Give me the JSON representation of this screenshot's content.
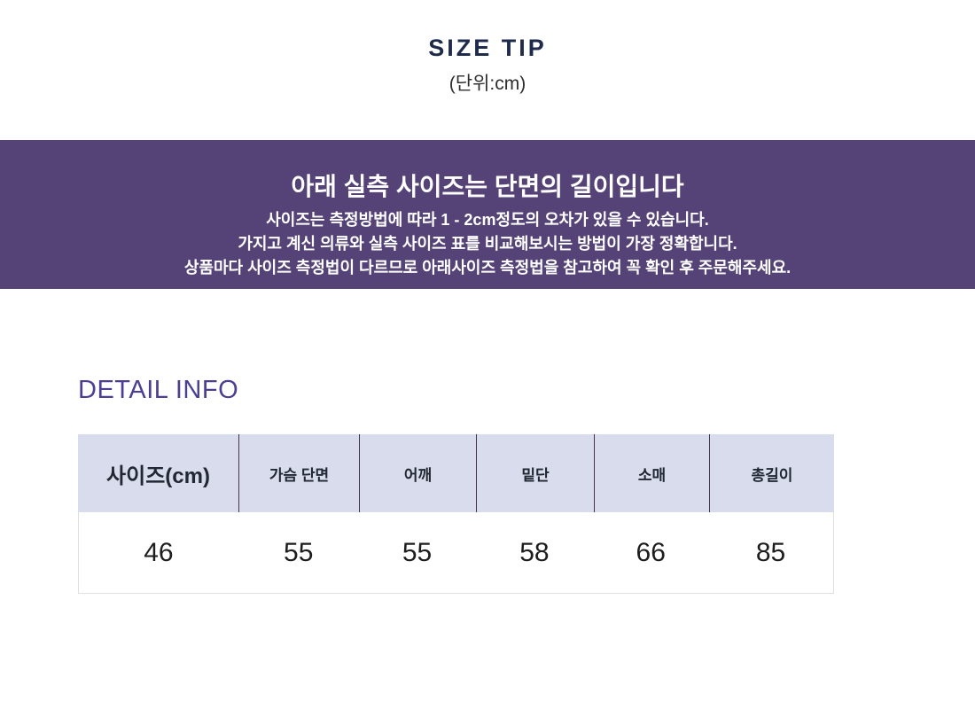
{
  "header": {
    "title": "SIZE TIP",
    "unit_note": "(단위:cm)",
    "title_color": "#1e2b4a"
  },
  "notice_banner": {
    "headline": "아래 실측 사이즈는 단면의 길이입니다",
    "lines": [
      "사이즈는 측정방법에 따라 1 - 2cm정도의 오차가 있을 수 있습니다.",
      "가지고 계신 의류와 실측 사이즈 표를 비교해보시는 방법이 가장 정확합니다.",
      "상품마다 사이즈 측정법이 다르므로 아래사이즈 측정법을 참고하여 꼭 확인 후 주문해주세요."
    ],
    "background_color": "#554377",
    "text_color": "#ffffff"
  },
  "detail_info": {
    "heading": "DETAIL INFO",
    "heading_color": "#4a3f93"
  },
  "size_table": {
    "columns": [
      "사이즈(cm)",
      "가슴 단면",
      "어깨",
      "밑단",
      "소매",
      "총길이"
    ],
    "rows": [
      [
        "46",
        "55",
        "55",
        "58",
        "66",
        "85"
      ]
    ],
    "header_background": "#d8dcec",
    "header_divider_color": "#43334d"
  }
}
